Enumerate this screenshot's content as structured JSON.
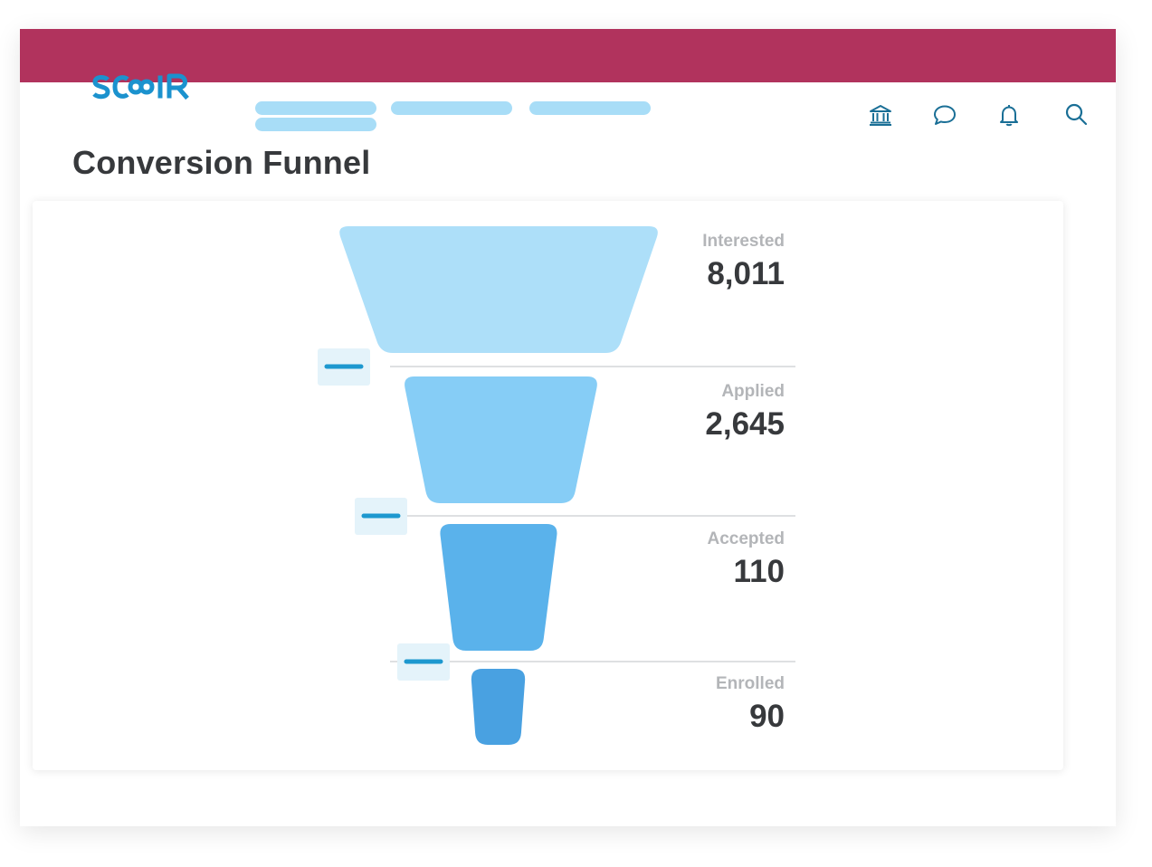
{
  "app": {
    "brand": "SCOIR",
    "colors": {
      "header_bar": "#b1335d",
      "brand_blue": "#1b92ce",
      "nav_placeholder": "#a8ddf7",
      "icon": "#1a6f96"
    },
    "header_icons": [
      "institution-icon",
      "chat-icon",
      "bell-icon",
      "search-icon"
    ]
  },
  "page": {
    "title": "Conversion Funnel"
  },
  "chart_data": {
    "type": "funnel",
    "stages": [
      {
        "label": "Interested",
        "value": 8011,
        "display": "8,011",
        "color": "#addff9"
      },
      {
        "label": "Applied",
        "value": 2645,
        "display": "2,645",
        "color": "#86cdf6"
      },
      {
        "label": "Accepted",
        "value": 110,
        "display": "110",
        "color": "#5ab2eb"
      },
      {
        "label": "Enrolled",
        "value": 90,
        "display": "90",
        "color": "#49a1e1"
      }
    ],
    "collapse_control_color": "#1d98cf"
  }
}
